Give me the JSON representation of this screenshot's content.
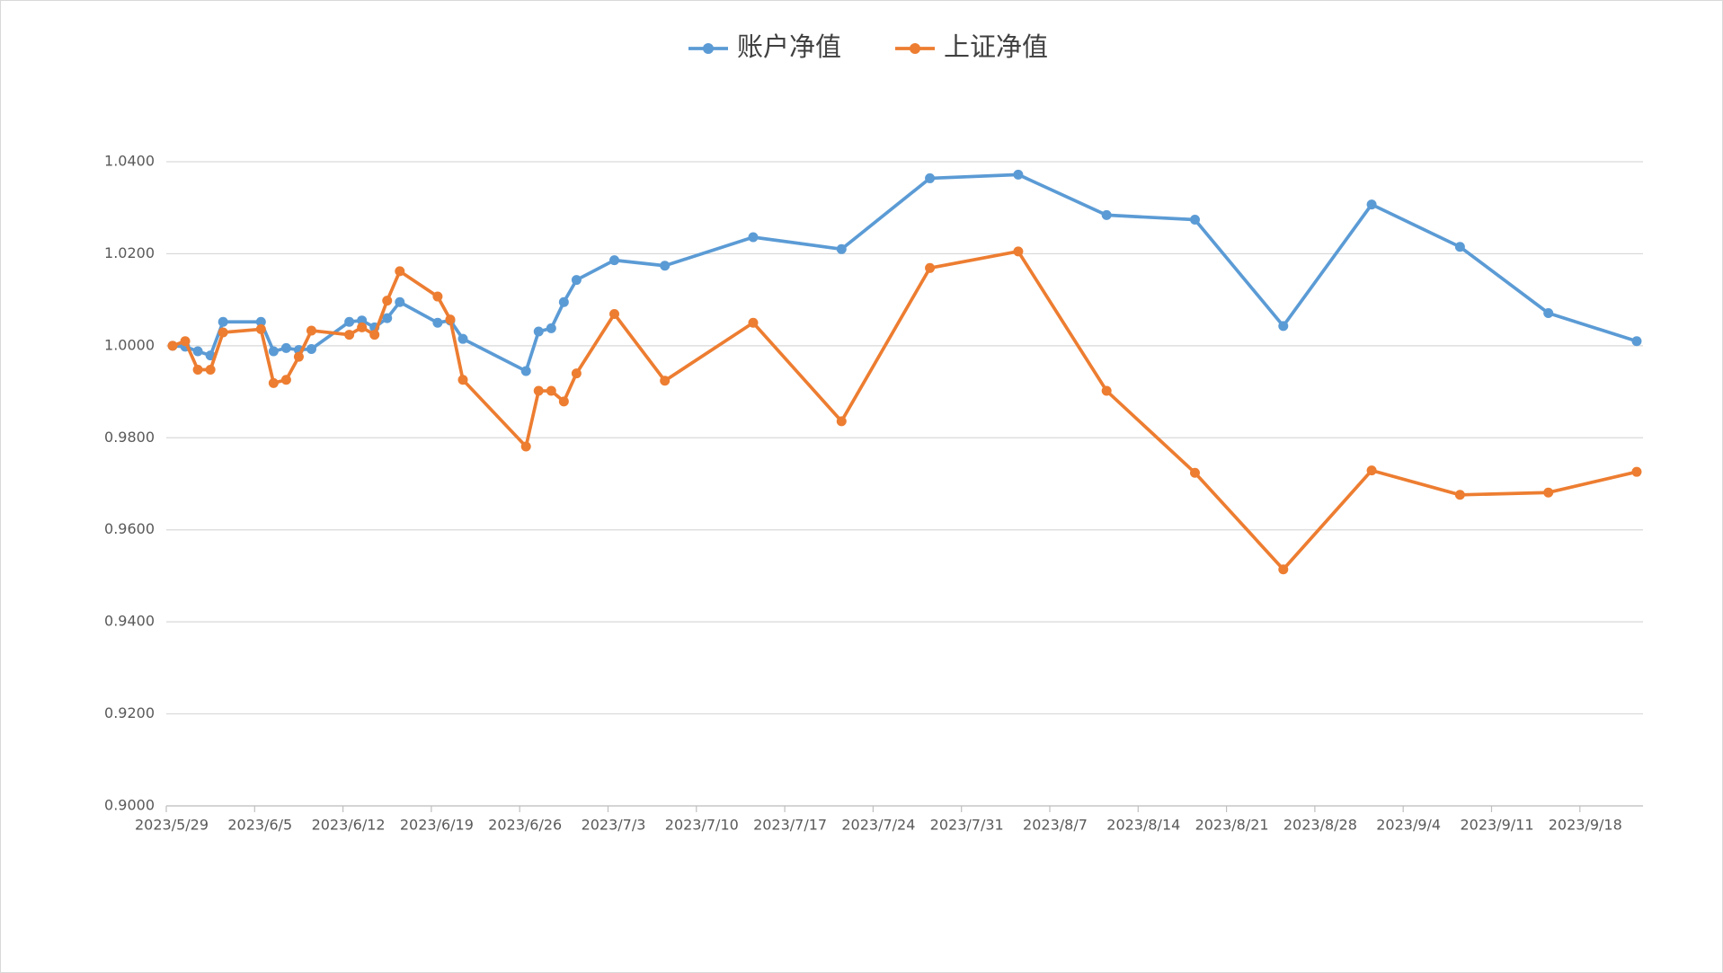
{
  "chart_data": {
    "type": "line",
    "x": [
      "2023/5/29",
      "2023/5/30",
      "2023/5/31",
      "2023/6/1",
      "2023/6/2",
      "2023/6/5",
      "2023/6/6",
      "2023/6/7",
      "2023/6/8",
      "2023/6/9",
      "2023/6/12",
      "2023/6/13",
      "2023/6/14",
      "2023/6/15",
      "2023/6/16",
      "2023/6/19",
      "2023/6/20",
      "2023/6/21",
      "2023/6/26",
      "2023/6/27",
      "2023/6/28",
      "2023/6/29",
      "2023/6/30",
      "2023/7/3",
      "2023/7/7",
      "2023/7/14",
      "2023/7/21",
      "2023/7/28",
      "2023/8/4",
      "2023/8/11",
      "2023/8/18",
      "2023/8/25",
      "2023/9/1",
      "2023/9/8",
      "2023/9/15",
      "2023/9/22"
    ],
    "series": [
      {
        "name": "账户净值",
        "color": "#5b9bd5",
        "values": [
          1.0,
          0.9998,
          0.9988,
          0.9979,
          1.0052,
          1.0052,
          0.9988,
          0.9995,
          0.9991,
          0.9993,
          1.0052,
          1.0055,
          1.004,
          1.006,
          1.0095,
          1.005,
          1.0055,
          1.0015,
          0.9945,
          1.0031,
          1.0038,
          1.0095,
          1.0143,
          1.0186,
          1.0174,
          1.0236,
          1.021,
          1.0364,
          1.0372,
          1.0284,
          1.0274,
          1.0043,
          1.0307,
          1.0215,
          1.0071,
          1.001
        ]
      },
      {
        "name": "上证净值",
        "color": "#ed7d31",
        "values": [
          1.0,
          1.001,
          0.9948,
          0.9948,
          1.0029,
          1.0036,
          0.9919,
          0.9926,
          0.9976,
          1.0033,
          1.0024,
          1.004,
          1.0024,
          1.0098,
          1.0162,
          1.0107,
          1.0057,
          0.9926,
          0.9781,
          0.9902,
          0.9902,
          0.9879,
          0.994,
          1.0069,
          0.9924,
          1.005,
          0.9836,
          1.0169,
          1.0205,
          0.9902,
          0.9724,
          0.9514,
          0.9729,
          0.9676,
          0.9681,
          0.9726
        ]
      }
    ],
    "xlim": [
      "2023/5/29",
      "2023/9/23"
    ],
    "xticks": [
      "2023/5/29",
      "2023/6/5",
      "2023/6/12",
      "2023/6/19",
      "2023/6/26",
      "2023/7/3",
      "2023/7/10",
      "2023/7/17",
      "2023/7/24",
      "2023/7/31",
      "2023/8/7",
      "2023/8/14",
      "2023/8/21",
      "2023/8/28",
      "2023/9/4",
      "2023/9/11",
      "2023/9/18"
    ],
    "ylim": [
      0.9,
      1.04
    ],
    "yticks": [
      {
        "value": 0.9,
        "label": "0.9000"
      },
      {
        "value": 0.92,
        "label": "0.9200"
      },
      {
        "value": 0.94,
        "label": "0.9400"
      },
      {
        "value": 0.96,
        "label": "0.9600"
      },
      {
        "value": 0.98,
        "label": "0.9800"
      },
      {
        "value": 1.0,
        "label": "1.0000"
      },
      {
        "value": 1.02,
        "label": "1.0200"
      },
      {
        "value": 1.04,
        "label": "1.0400"
      }
    ],
    "grid": true,
    "legend": "top"
  }
}
